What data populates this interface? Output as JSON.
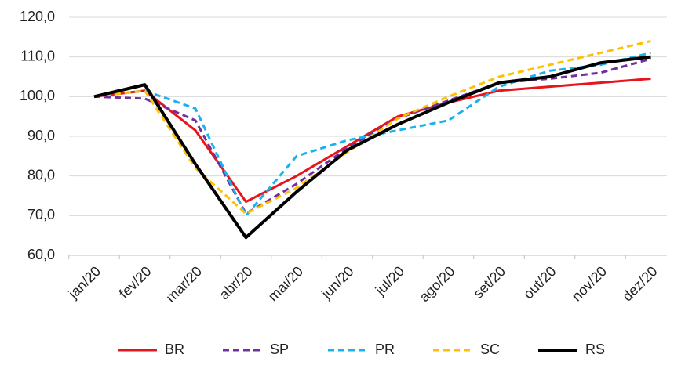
{
  "chart_data": {
    "type": "line",
    "categories": [
      "jan/20",
      "fev/20",
      "mar/20",
      "abr/20",
      "mai/20",
      "jun/20",
      "jul/20",
      "ago/20",
      "set/20",
      "out/20",
      "nov/20",
      "dez/20"
    ],
    "series": [
      {
        "name": "BR",
        "color": "#e8141c",
        "dashed": false,
        "values": [
          100,
          101.5,
          91.5,
          73.5,
          80,
          87.5,
          95,
          98.5,
          101.5,
          102.5,
          103.5,
          104.5
        ]
      },
      {
        "name": "SP",
        "color": "#7030a0",
        "dashed": true,
        "values": [
          100,
          99.5,
          94,
          70.5,
          78,
          87,
          94.5,
          99,
          103.5,
          104.5,
          106,
          109.5
        ]
      },
      {
        "name": "PR",
        "color": "#1ab2ee",
        "dashed": true,
        "values": [
          100,
          101.5,
          97,
          70,
          85,
          89,
          91.5,
          94,
          102.5,
          106.5,
          108,
          111
        ]
      },
      {
        "name": "SC",
        "color": "#ffc000",
        "dashed": true,
        "values": [
          100,
          101.5,
          82,
          70.5,
          77,
          86,
          94.5,
          100,
          105,
          108,
          111,
          114
        ]
      },
      {
        "name": "RS",
        "color": "#000000",
        "dashed": false,
        "values": [
          100,
          103,
          83,
          64.5,
          76,
          86.5,
          93,
          98.5,
          103.5,
          105,
          108.5,
          110
        ]
      }
    ],
    "ylim": [
      60,
      120
    ],
    "yticks": [
      {
        "value": 60,
        "label": "60,0"
      },
      {
        "value": 70,
        "label": "70,0"
      },
      {
        "value": 80,
        "label": "80,0"
      },
      {
        "value": 90,
        "label": "90,0"
      },
      {
        "value": 100,
        "label": "100,0"
      },
      {
        "value": 110,
        "label": "110,0"
      },
      {
        "value": 120,
        "label": "120,0"
      }
    ],
    "grid": true,
    "legend": "bottom"
  }
}
